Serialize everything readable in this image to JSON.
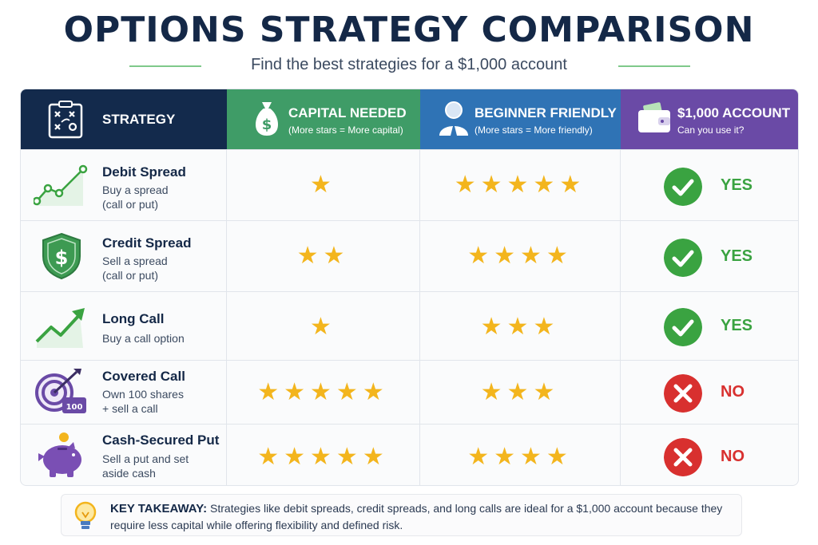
{
  "page": {
    "title": "OPTIONS STRATEGY COMPARISON",
    "subtitle": "Find the best strategies for a $1,000 account"
  },
  "columns": {
    "strategy": {
      "title": "STRATEGY",
      "icon": "strategy-board-icon"
    },
    "capital": {
      "title": "CAPITAL NEEDED",
      "subtitle": "(More stars = More capital)",
      "icon": "money-bag-icon"
    },
    "beginner": {
      "title": "BEGINNER FRIENDLY",
      "subtitle": "(More stars = More friendly)",
      "icon": "person-icon"
    },
    "account": {
      "title": "$1,000 ACCOUNT",
      "subtitle": "Can you use it?",
      "icon": "wallet-icon"
    }
  },
  "rows": [
    {
      "name": "Debit Spread",
      "desc1": "Buy a spread",
      "desc2": "(call or put)",
      "icon": "line-chart-icon",
      "capital_stars": 1,
      "capital_display": "★",
      "beginner_stars": 5,
      "beginner_display": "★★★★★",
      "verdict": "YES"
    },
    {
      "name": "Credit Spread",
      "desc1": "Sell a spread",
      "desc2": "(call or put)",
      "icon": "shield-dollar-icon",
      "capital_stars": 2,
      "capital_display": "★★",
      "beginner_stars": 4,
      "beginner_display": "★★★★",
      "verdict": "YES"
    },
    {
      "name": "Long Call",
      "desc1": "Buy a call option",
      "desc2": "",
      "icon": "trend-up-arrow-icon",
      "capital_stars": 1,
      "capital_display": "★",
      "beginner_stars": 3,
      "beginner_display": "★★★",
      "verdict": "YES"
    },
    {
      "name": "Covered Call",
      "desc1": "Own 100 shares",
      "desc2": "+ sell a call",
      "icon": "target-arrow-icon",
      "capital_stars": 5,
      "capital_display": "★★★★★",
      "beginner_stars": 3,
      "beginner_display": "★★★",
      "verdict": "NO"
    },
    {
      "name": "Cash-Secured Put",
      "desc1": "Sell a put and set",
      "desc2": "aside cash",
      "icon": "piggy-bank-icon",
      "capital_stars": 5,
      "capital_display": "★★★★★",
      "beginner_stars": 4,
      "beginner_display": "★★★★",
      "verdict": "NO"
    }
  ],
  "takeaway": {
    "label": "KEY TAKEAWAY:",
    "text": "Strategies like debit spreads, credit spreads, and long calls are ideal for a $1,000 account because they require less capital while offering flexibility and defined risk.",
    "icon": "lightbulb-icon"
  },
  "colors": {
    "navy": "#132a4c",
    "green_header": "#3f9c67",
    "blue_header": "#2f73b5",
    "purple_header": "#6a4aa6",
    "star": "#f3b51d",
    "yes": "#3aa341",
    "no": "#d8302f"
  },
  "misc": {
    "covered_call_badge": "100"
  }
}
